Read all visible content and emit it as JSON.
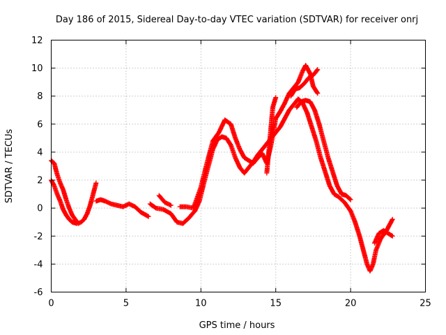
{
  "chart_data": {
    "type": "scatter",
    "title": "Day 186 of 2015, Sidereal Day-to-day VTEC variation (SDTVAR) for receiver onrj",
    "xlabel": "GPS time / hours",
    "ylabel": "SDTVAR / TECUs",
    "xlim": [
      0,
      25
    ],
    "ylim": [
      -6,
      12
    ],
    "xticks": [
      0,
      5,
      10,
      15,
      20,
      25
    ],
    "yticks": [
      -6,
      -4,
      -2,
      0,
      2,
      4,
      6,
      8,
      10,
      12
    ],
    "grid": true,
    "marker": "+",
    "series": [
      {
        "name": "SDTVAR",
        "color": "#ff0000",
        "segments": [
          [
            [
              0.0,
              3.4
            ],
            [
              0.2,
              3.2
            ],
            [
              0.4,
              2.4
            ],
            [
              0.6,
              1.8
            ],
            [
              0.8,
              1.3
            ],
            [
              1.0,
              0.6
            ],
            [
              1.2,
              0.0
            ],
            [
              1.4,
              -0.5
            ],
            [
              1.6,
              -0.8
            ],
            [
              1.8,
              -1.1
            ],
            [
              2.0,
              -1.0
            ],
            [
              2.2,
              -0.8
            ],
            [
              2.4,
              -0.4
            ],
            [
              2.6,
              0.2
            ],
            [
              2.8,
              1.0
            ],
            [
              3.0,
              1.8
            ]
          ],
          [
            [
              0.0,
              2.0
            ],
            [
              0.2,
              1.6
            ],
            [
              0.4,
              1.0
            ],
            [
              0.6,
              0.5
            ],
            [
              0.8,
              -0.1
            ],
            [
              1.0,
              -0.5
            ],
            [
              1.2,
              -0.8
            ],
            [
              1.4,
              -1.0
            ],
            [
              1.7,
              -1.1
            ]
          ],
          [
            [
              3.0,
              0.5
            ],
            [
              3.3,
              0.6
            ],
            [
              3.6,
              0.5
            ],
            [
              4.0,
              0.3
            ],
            [
              4.4,
              0.2
            ],
            [
              4.8,
              0.1
            ],
            [
              5.2,
              0.3
            ],
            [
              5.6,
              0.1
            ],
            [
              6.0,
              -0.3
            ],
            [
              6.5,
              -0.6
            ]
          ],
          [
            [
              6.6,
              0.3
            ],
            [
              7.0,
              0.0
            ],
            [
              7.5,
              -0.1
            ],
            [
              8.0,
              -0.4
            ],
            [
              8.4,
              -1.0
            ],
            [
              8.8,
              -1.1
            ],
            [
              9.2,
              -0.7
            ],
            [
              9.6,
              -0.2
            ],
            [
              9.9,
              0.5
            ],
            [
              10.2,
              1.8
            ],
            [
              10.5,
              3.0
            ],
            [
              10.8,
              4.2
            ],
            [
              11.1,
              4.9
            ],
            [
              11.4,
              5.1
            ],
            [
              11.7,
              5.0
            ],
            [
              12.0,
              4.5
            ],
            [
              12.3,
              3.6
            ],
            [
              12.6,
              2.9
            ],
            [
              12.9,
              2.5
            ],
            [
              13.2,
              2.9
            ],
            [
              13.5,
              3.3
            ],
            [
              13.8,
              3.8
            ],
            [
              14.1,
              4.2
            ],
            [
              14.4,
              4.6
            ],
            [
              14.7,
              5.0
            ],
            [
              15.0,
              5.4
            ],
            [
              15.3,
              5.8
            ],
            [
              15.6,
              6.4
            ],
            [
              15.9,
              7.0
            ],
            [
              16.2,
              7.4
            ],
            [
              16.5,
              7.8
            ],
            [
              16.8,
              7.5
            ],
            [
              17.1,
              6.8
            ],
            [
              17.4,
              5.8
            ],
            [
              17.7,
              4.8
            ],
            [
              18.0,
              3.6
            ],
            [
              18.3,
              2.6
            ],
            [
              18.6,
              1.6
            ],
            [
              18.9,
              1.0
            ],
            [
              19.2,
              0.8
            ],
            [
              19.6,
              0.4
            ],
            [
              20.0,
              -0.2
            ],
            [
              20.3,
              -1.0
            ],
            [
              20.6,
              -2.0
            ],
            [
              20.9,
              -3.2
            ],
            [
              21.1,
              -4.0
            ],
            [
              21.3,
              -4.5
            ],
            [
              21.5,
              -4.0
            ],
            [
              21.7,
              -3.0
            ],
            [
              22.0,
              -2.2
            ],
            [
              22.4,
              -1.6
            ],
            [
              22.8,
              -0.8
            ]
          ],
          [
            [
              7.2,
              0.9
            ],
            [
              7.6,
              0.4
            ],
            [
              8.0,
              0.2
            ]
          ],
          [
            [
              8.6,
              0.1
            ],
            [
              9.0,
              0.1
            ],
            [
              9.5,
              0.0
            ],
            [
              10.0,
              1.5
            ],
            [
              10.4,
              3.2
            ],
            [
              10.8,
              4.8
            ],
            [
              11.2,
              5.4
            ],
            [
              11.6,
              6.3
            ],
            [
              12.0,
              6.0
            ],
            [
              12.3,
              5.0
            ],
            [
              12.6,
              4.2
            ],
            [
              12.9,
              3.6
            ],
            [
              13.2,
              3.4
            ],
            [
              13.5,
              3.2
            ],
            [
              13.8,
              3.6
            ],
            [
              14.1,
              3.9
            ],
            [
              14.4,
              3.2
            ],
            [
              14.7,
              4.6
            ],
            [
              15.0,
              6.4
            ],
            [
              15.3,
              6.9
            ],
            [
              15.6,
              7.5
            ],
            [
              15.9,
              8.2
            ],
            [
              16.2,
              8.6
            ],
            [
              16.5,
              9.0
            ],
            [
              16.8,
              9.8
            ],
            [
              17.0,
              10.2
            ],
            [
              17.3,
              9.6
            ],
            [
              17.5,
              8.7
            ],
            [
              17.8,
              8.2
            ]
          ],
          [
            [
              14.4,
              2.5
            ],
            [
              14.6,
              4.8
            ],
            [
              14.8,
              7.2
            ],
            [
              15.0,
              7.9
            ]
          ],
          [
            [
              16.0,
              8.0
            ],
            [
              16.3,
              8.5
            ],
            [
              16.6,
              8.6
            ],
            [
              16.9,
              8.9
            ],
            [
              17.2,
              9.3
            ],
            [
              17.5,
              9.5
            ],
            [
              17.8,
              9.9
            ]
          ],
          [
            [
              16.4,
              7.2
            ],
            [
              16.7,
              7.6
            ],
            [
              17.0,
              7.7
            ],
            [
              17.3,
              7.6
            ],
            [
              17.6,
              7.0
            ],
            [
              17.9,
              6.0
            ],
            [
              18.2,
              4.8
            ],
            [
              18.5,
              3.6
            ],
            [
              18.8,
              2.6
            ],
            [
              19.1,
              1.6
            ],
            [
              19.4,
              1.0
            ],
            [
              19.7,
              0.9
            ],
            [
              20.0,
              0.6
            ]
          ],
          [
            [
              21.6,
              -2.5
            ],
            [
              21.9,
              -1.8
            ],
            [
              22.2,
              -1.6
            ],
            [
              22.5,
              -1.8
            ],
            [
              22.8,
              -2.0
            ]
          ]
        ]
      }
    ]
  }
}
